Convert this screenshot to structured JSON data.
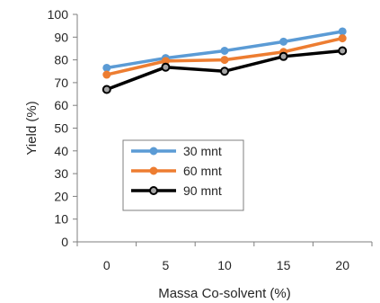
{
  "chart_data": {
    "type": "line",
    "x": [
      0,
      5,
      10,
      15,
      20
    ],
    "categories": [
      "0",
      "5",
      "10",
      "15",
      "20"
    ],
    "series": [
      {
        "name": "30 mnt",
        "color": "#5b9bd5",
        "values": [
          76.5,
          80.8,
          84,
          88,
          92.5
        ]
      },
      {
        "name": "60 mnt",
        "color": "#ed7d31",
        "values": [
          73.5,
          79.5,
          80,
          83.5,
          89.5
        ]
      },
      {
        "name": "90 mnt",
        "color": "#000000",
        "values": [
          67,
          76.8,
          75,
          81.5,
          84
        ]
      }
    ],
    "xlabel": "Massa Co-solvent (%)",
    "ylabel": "Yield (%)",
    "ylim": [
      0,
      100
    ],
    "yticks": [
      0,
      10,
      20,
      30,
      40,
      50,
      60,
      70,
      80,
      90,
      100
    ],
    "grid": false,
    "legend": "inside-bottom-left"
  }
}
